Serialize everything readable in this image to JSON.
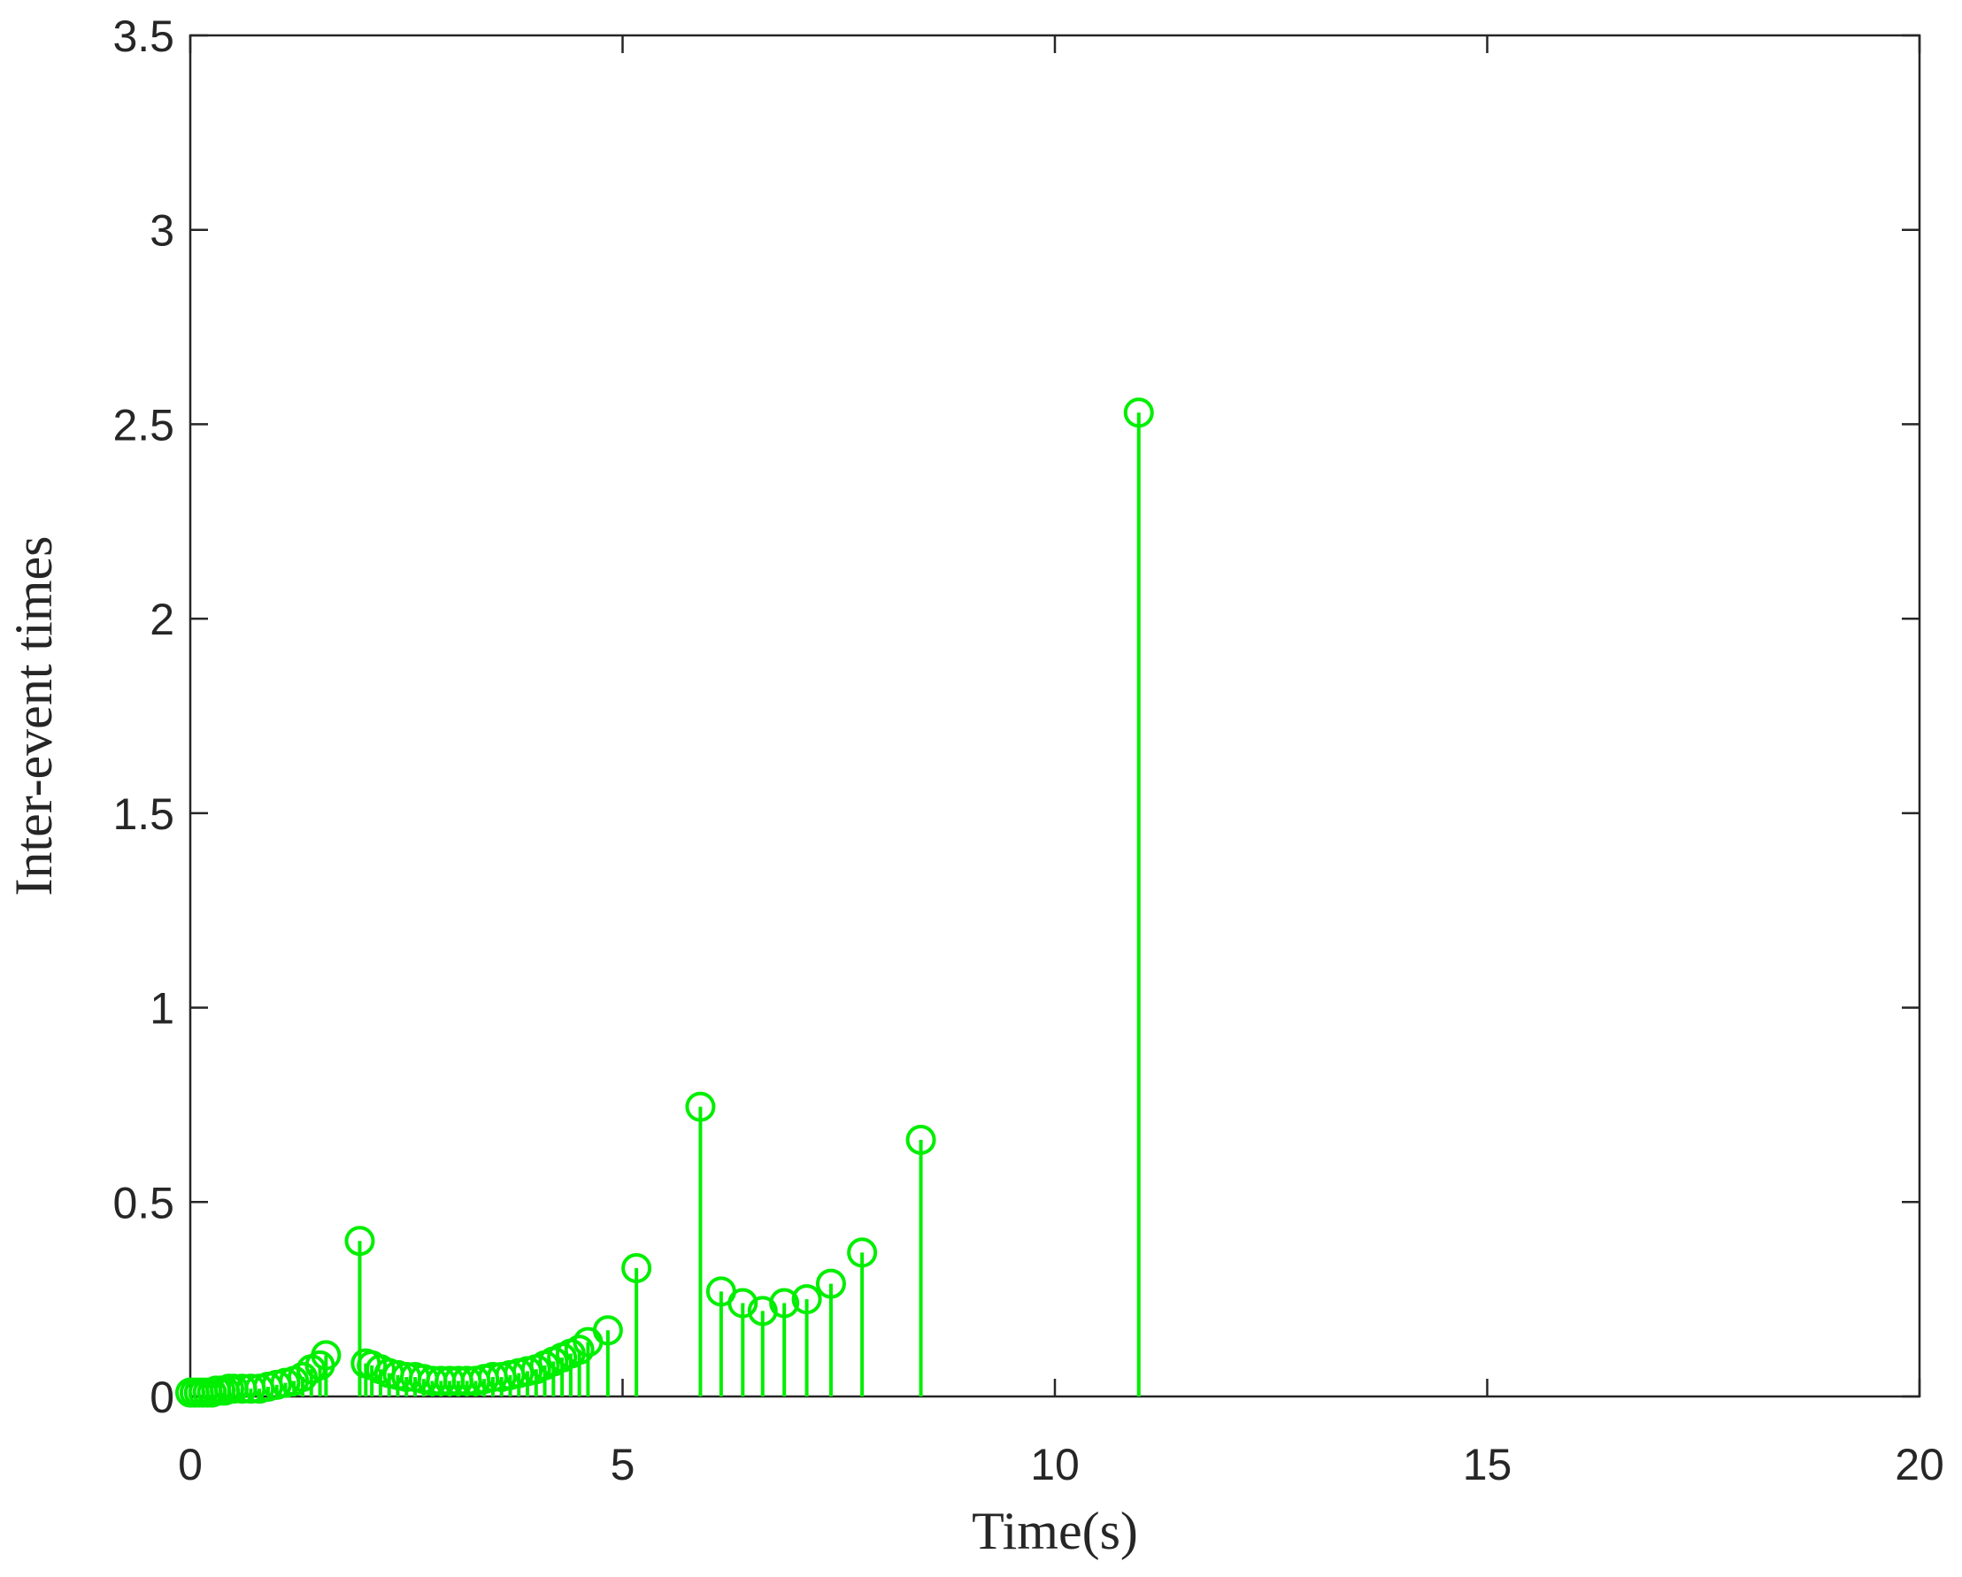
{
  "chart_data": {
    "type": "stem",
    "xlabel": "Time(s)",
    "ylabel": "Inter-event times",
    "color": "#00ee00",
    "x": [
      0.0,
      0.05,
      0.1,
      0.15,
      0.2,
      0.25,
      0.3,
      0.35,
      0.4,
      0.45,
      0.5,
      0.6,
      0.7,
      0.8,
      0.9,
      1.0,
      1.1,
      1.2,
      1.3,
      1.4,
      1.5,
      1.57,
      1.96,
      2.03,
      2.1,
      2.2,
      2.3,
      2.4,
      2.5,
      2.6,
      2.7,
      2.8,
      2.9,
      3.0,
      3.1,
      3.2,
      3.3,
      3.4,
      3.5,
      3.6,
      3.7,
      3.8,
      3.9,
      4.0,
      4.1,
      4.2,
      4.3,
      4.4,
      4.5,
      4.6,
      4.83,
      5.16,
      5.9,
      6.14,
      6.39,
      6.62,
      6.87,
      7.13,
      7.41,
      7.77,
      8.45,
      10.97
    ],
    "values": [
      0.01,
      0.01,
      0.01,
      0.01,
      0.01,
      0.01,
      0.015,
      0.015,
      0.015,
      0.02,
      0.02,
      0.02,
      0.02,
      0.02,
      0.025,
      0.03,
      0.035,
      0.04,
      0.05,
      0.07,
      0.08,
      0.106,
      0.4,
      0.085,
      0.08,
      0.07,
      0.06,
      0.055,
      0.05,
      0.05,
      0.045,
      0.04,
      0.04,
      0.04,
      0.04,
      0.04,
      0.04,
      0.045,
      0.05,
      0.05,
      0.055,
      0.06,
      0.065,
      0.07,
      0.08,
      0.09,
      0.1,
      0.11,
      0.12,
      0.14,
      0.17,
      0.33,
      0.745,
      0.27,
      0.24,
      0.22,
      0.24,
      0.25,
      0.29,
      0.37,
      0.66,
      2.53
    ],
    "xlim": [
      0,
      20
    ],
    "ylim": [
      0,
      3.5
    ],
    "xticks": [
      0,
      5,
      10,
      15,
      20
    ],
    "yticks": [
      0,
      0.5,
      1,
      1.5,
      2,
      2.5,
      3,
      3.5
    ]
  }
}
